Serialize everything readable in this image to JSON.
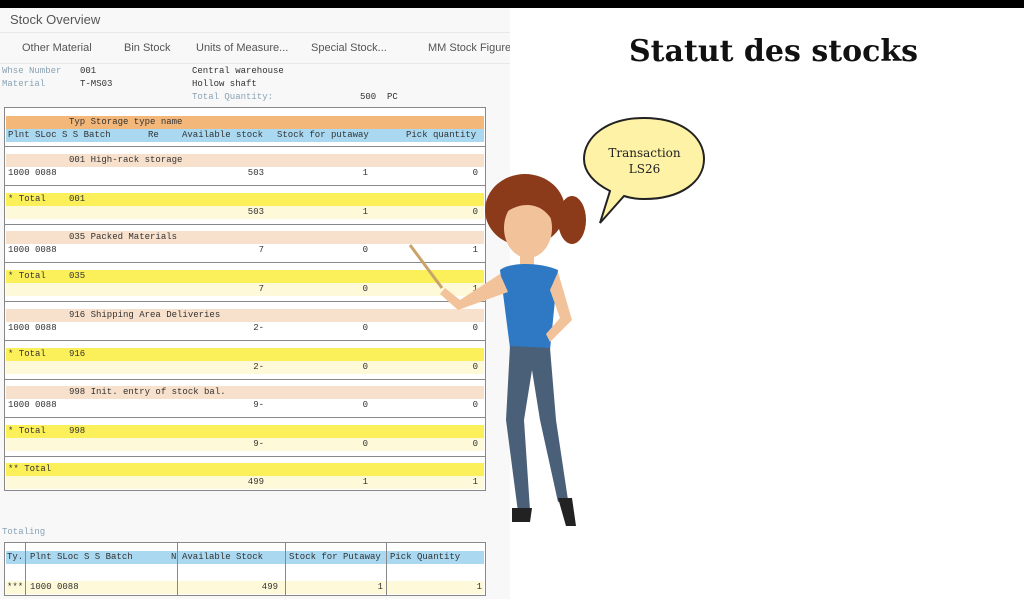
{
  "window": {
    "title": "Stock Overview"
  },
  "toolbar": [
    "Other Material",
    "Bin Stock",
    "Units of Measure...",
    "Special Stock...",
    "MM Stock Figures"
  ],
  "header": {
    "whse_label": "Whse Number",
    "whse_value": "001",
    "whse_desc": "Central warehouse",
    "material_label": "Material",
    "material_value": "T-MS03",
    "material_desc": "Hollow shaft",
    "total_label": "Total Quantity:",
    "total_value": "500",
    "total_unit": "PC"
  },
  "grid": {
    "header1": "Typ Storage type name",
    "columns": [
      "Plnt SLoc S S Batch",
      "Re",
      "Available stock",
      "Stock for putaway",
      "Pick quantity"
    ],
    "groups": [
      {
        "title": "001 High-rack storage",
        "row": {
          "plnt_sloc": "1000 0088",
          "available": "503",
          "putaway": "1",
          "pick": "0"
        },
        "total_label": "* Total",
        "total_type": "001",
        "total": {
          "available": "503",
          "putaway": "1",
          "pick": "0"
        }
      },
      {
        "title": "035 Packed Materials",
        "row": {
          "plnt_sloc": "1000 0088",
          "available": "7",
          "putaway": "0",
          "pick": "1"
        },
        "total_label": "* Total",
        "total_type": "035",
        "total": {
          "available": "7",
          "putaway": "0",
          "pick": "1"
        }
      },
      {
        "title": "916 Shipping Area Deliveries",
        "row": {
          "plnt_sloc": "1000 0088",
          "available": "2-",
          "putaway": "0",
          "pick": "0"
        },
        "total_label": "* Total",
        "total_type": "916",
        "total": {
          "available": "2-",
          "putaway": "0",
          "pick": "0"
        }
      },
      {
        "title": "998 Init. entry of stock bal.",
        "row": {
          "plnt_sloc": "1000 0088",
          "available": "9-",
          "putaway": "0",
          "pick": "0"
        },
        "total_label": "* Total",
        "total_type": "998",
        "total": {
          "available": "9-",
          "putaway": "0",
          "pick": "0"
        }
      }
    ],
    "grand_total": {
      "label": "** Total",
      "available": "499",
      "putaway": "1",
      "pick": "1"
    }
  },
  "totaling": {
    "label": "Totaling",
    "columns": [
      "Ty.",
      "Plnt SLoc S S Batch",
      "N",
      "Available Stock",
      "Stock for Putaway",
      "Pick Quantity"
    ],
    "row": {
      "ty": "***",
      "plnt_sloc": "1000 0088",
      "available": "499",
      "putaway": "1",
      "pick": "1"
    }
  },
  "slide": {
    "heading": "Statut des stocks",
    "bubble_line1": "Transaction",
    "bubble_line2": "LS26"
  }
}
